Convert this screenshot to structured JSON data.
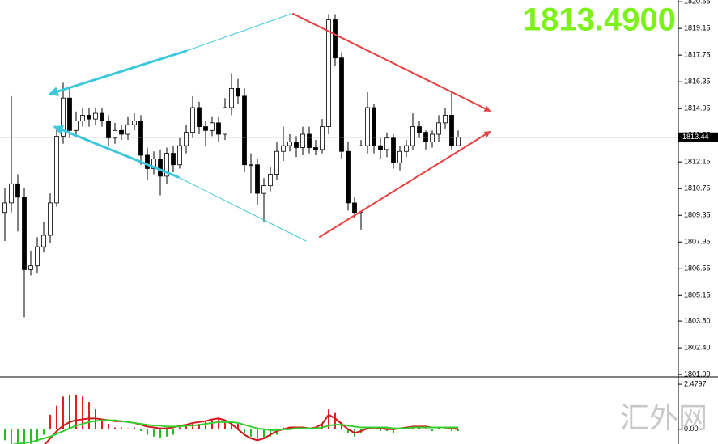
{
  "chart_data": [
    {
      "type": "candlestick",
      "bid_display": "1813.4900",
      "current_price": 1813.44,
      "ylim": [
        1800.92,
        1820.64
      ],
      "yticks": [
        1820.55,
        1819.15,
        1817.75,
        1816.35,
        1814.95,
        1813.55,
        1812.15,
        1810.75,
        1809.35,
        1807.95,
        1806.55,
        1805.15,
        {
          "value": 1803.8,
          "label": "1803.80"
        },
        {
          "value": 1802.4,
          "label": "1802.40"
        },
        {
          "value": 1801,
          "label": "1801.00"
        }
      ],
      "up_color": "#ffffff",
      "down_color": "#000000",
      "open": [
        1809.5,
        1810.0,
        1811.0,
        1810.3,
        1806.5,
        1806.7,
        1807.7,
        1808.3,
        1810.0,
        1813.5,
        1815.5,
        1813.8,
        1814.3,
        1814.6,
        1814.4,
        1814.7,
        1814.3,
        1813.4,
        1813.8,
        1813.6,
        1814.1,
        1814.3,
        1812.5,
        1811.8,
        1812.3,
        1811.4,
        1812.6,
        1812.0,
        1813.0,
        1813.7,
        1815.0,
        1814.0,
        1813.8,
        1814.2,
        1813.6,
        1815.0,
        1816.0,
        1815.6,
        1812.0,
        1812.0,
        1810.5,
        1810.9,
        1811.5,
        1812.7,
        1813.0,
        1813.2,
        1812.9,
        1813.6,
        1812.9,
        1812.8,
        1814.0,
        1819.6,
        1817.6,
        1812.7,
        1810.0,
        1809.5,
        1813.0,
        1815.0,
        1813.0,
        1812.8,
        1813.4,
        1812.1,
        1812.7,
        1813.0,
        1814.0,
        1813.7,
        1813.2,
        1813.6,
        1814.2,
        1814.6,
        1813.0
      ],
      "high": [
        1810.8,
        1815.6,
        1811.5,
        1810.8,
        1807.5,
        1808.2,
        1809.0,
        1810.5,
        1814.0,
        1816.3,
        1816.0,
        1814.8,
        1815.0,
        1815.0,
        1815.0,
        1815.0,
        1814.6,
        1814.2,
        1814.1,
        1814.5,
        1814.7,
        1814.6,
        1812.9,
        1812.7,
        1812.8,
        1812.9,
        1813.0,
        1813.4,
        1814.1,
        1815.6,
        1815.3,
        1814.3,
        1814.5,
        1814.5,
        1815.5,
        1816.8,
        1816.5,
        1816.0,
        1812.6,
        1812.3,
        1811.3,
        1811.9,
        1813.2,
        1814.0,
        1813.6,
        1813.5,
        1814.0,
        1814.0,
        1813.3,
        1814.4,
        1819.9,
        1819.9,
        1817.9,
        1813.2,
        1810.3,
        1813.3,
        1815.8,
        1815.2,
        1813.4,
        1813.7,
        1813.6,
        1813.0,
        1813.3,
        1814.7,
        1814.3,
        1813.8,
        1813.8,
        1814.6,
        1815.0,
        1815.8,
        1813.8
      ],
      "low": [
        1808.0,
        1809.5,
        1808.5,
        1804.0,
        1806.2,
        1806.3,
        1807.4,
        1807.9,
        1809.8,
        1813.1,
        1813.4,
        1813.5,
        1814.0,
        1814.0,
        1814.1,
        1814.0,
        1813.0,
        1813.1,
        1813.3,
        1813.3,
        1813.8,
        1812.0,
        1811.2,
        1811.5,
        1810.4,
        1811.0,
        1811.6,
        1811.8,
        1812.6,
        1813.4,
        1813.6,
        1813.0,
        1813.5,
        1813.2,
        1813.3,
        1814.6,
        1815.2,
        1811.6,
        1810.5,
        1809.9,
        1809.0,
        1810.6,
        1811.2,
        1812.2,
        1812.7,
        1812.4,
        1812.5,
        1812.6,
        1812.5,
        1812.6,
        1813.6,
        1817.2,
        1812.3,
        1809.6,
        1809.2,
        1808.6,
        1812.6,
        1812.6,
        1812.3,
        1812.4,
        1811.8,
        1811.7,
        1812.4,
        1812.8,
        1813.4,
        1812.8,
        1812.9,
        1813.2,
        1813.9,
        1812.8,
        1813.1
      ],
      "close": [
        1810.0,
        1811.0,
        1810.3,
        1806.5,
        1806.7,
        1807.7,
        1808.3,
        1810.0,
        1813.5,
        1815.5,
        1813.8,
        1814.3,
        1814.6,
        1814.4,
        1814.7,
        1814.3,
        1813.4,
        1813.8,
        1813.6,
        1814.1,
        1814.3,
        1812.5,
        1811.8,
        1812.3,
        1811.4,
        1812.6,
        1812.0,
        1813.0,
        1813.7,
        1815.0,
        1814.0,
        1813.8,
        1814.2,
        1813.6,
        1815.0,
        1816.0,
        1815.6,
        1812.0,
        1812.0,
        1810.5,
        1810.9,
        1811.5,
        1812.7,
        1813.0,
        1813.2,
        1812.9,
        1813.6,
        1812.9,
        1812.8,
        1814.0,
        1819.6,
        1817.6,
        1812.7,
        1810.0,
        1809.5,
        1813.0,
        1815.0,
        1813.0,
        1812.8,
        1813.4,
        1812.1,
        1812.7,
        1813.0,
        1814.0,
        1813.7,
        1813.2,
        1813.6,
        1814.2,
        1814.6,
        1813.0,
        1813.44
      ]
    },
    {
      "type": "macd",
      "ylim": [
        -0.81,
        2.84
      ],
      "yticks": [
        2.4797,
        {
          "value": 0,
          "label": "0.00"
        }
      ],
      "up_color": "#e02020",
      "down_color": "#20c020",
      "histogram": [
        -0.6,
        -0.8,
        -0.8,
        -0.9,
        -0.8,
        -0.7,
        -0.3,
        0.8,
        1.3,
        1.8,
        1.9,
        1.9,
        1.8,
        1.5,
        1.1,
        0.5,
        0.3,
        0.1,
        0.1,
        0.05,
        0.1,
        -0.1,
        -0.3,
        -0.4,
        -0.5,
        -0.4,
        -0.3,
        0.1,
        0.2,
        0.3,
        0.3,
        0.4,
        0.5,
        0.6,
        0.5,
        0.4,
        0.3,
        -0.2,
        -0.4,
        -0.6,
        -0.5,
        -0.4,
        -0.3,
        0.1,
        0.1,
        0.1,
        0.1,
        0.05,
        0.05,
        0.3,
        1.1,
        0.9,
        0.4,
        -0.2,
        -0.4,
        -0.2,
        0.1,
        0.1,
        -0.1,
        -0.1,
        -0.2,
        0.05,
        0.1,
        0.1,
        0.1,
        0.05,
        -0.1,
        0.1,
        0.05,
        -0.1,
        -0.1
      ],
      "lines": [
        {
          "color": "#d01818",
          "values": [
            -0.9,
            -0.9,
            -0.9,
            -0.9,
            -0.9,
            -0.9,
            -0.9,
            -0.5,
            -0.1,
            0.2,
            0.4,
            0.5,
            0.55,
            0.6,
            0.6,
            0.55,
            0.5,
            0.45,
            0.45,
            0.4,
            0.35,
            0.25,
            0.15,
            0.1,
            0.05,
            0.05,
            0.1,
            0.2,
            0.25,
            0.35,
            0.4,
            0.45,
            0.55,
            0.6,
            0.5,
            0.3,
            0.0,
            -0.3,
            -0.5,
            -0.6,
            -0.5,
            -0.3,
            -0.1,
            0.0,
            0.1,
            0.1,
            0.1,
            0.05,
            0.1,
            0.3,
            0.8,
            0.6,
            0.3,
            0.0,
            -0.2,
            -0.1,
            0.05,
            0.1,
            0.05,
            0.0,
            0.0,
            0.05,
            0.1,
            0.15,
            0.15,
            0.15,
            0.1,
            0.1,
            0.1,
            0.05,
            0.0
          ]
        },
        {
          "color": "#30d030",
          "values": [
            -0.9,
            -0.85,
            -0.8,
            -0.75,
            -0.7,
            -0.6,
            -0.5,
            -0.4,
            -0.25,
            -0.1,
            0.05,
            0.2,
            0.3,
            0.4,
            0.45,
            0.5,
            0.5,
            0.5,
            0.45,
            0.4,
            0.35,
            0.3,
            0.25,
            0.2,
            0.2,
            0.15,
            0.15,
            0.15,
            0.2,
            0.2,
            0.25,
            0.3,
            0.35,
            0.4,
            0.4,
            0.4,
            0.35,
            0.25,
            0.15,
            0.05,
            0.0,
            -0.05,
            -0.05,
            0.0,
            0.0,
            0.05,
            0.05,
            0.05,
            0.05,
            0.1,
            0.2,
            0.25,
            0.25,
            0.2,
            0.15,
            0.1,
            0.1,
            0.1,
            0.1,
            0.1,
            0.05,
            0.05,
            0.05,
            0.1,
            0.1,
            0.1,
            0.1,
            0.1,
            0.1,
            0.1,
            0.1
          ]
        }
      ]
    }
  ],
  "watermark": "汇外网"
}
